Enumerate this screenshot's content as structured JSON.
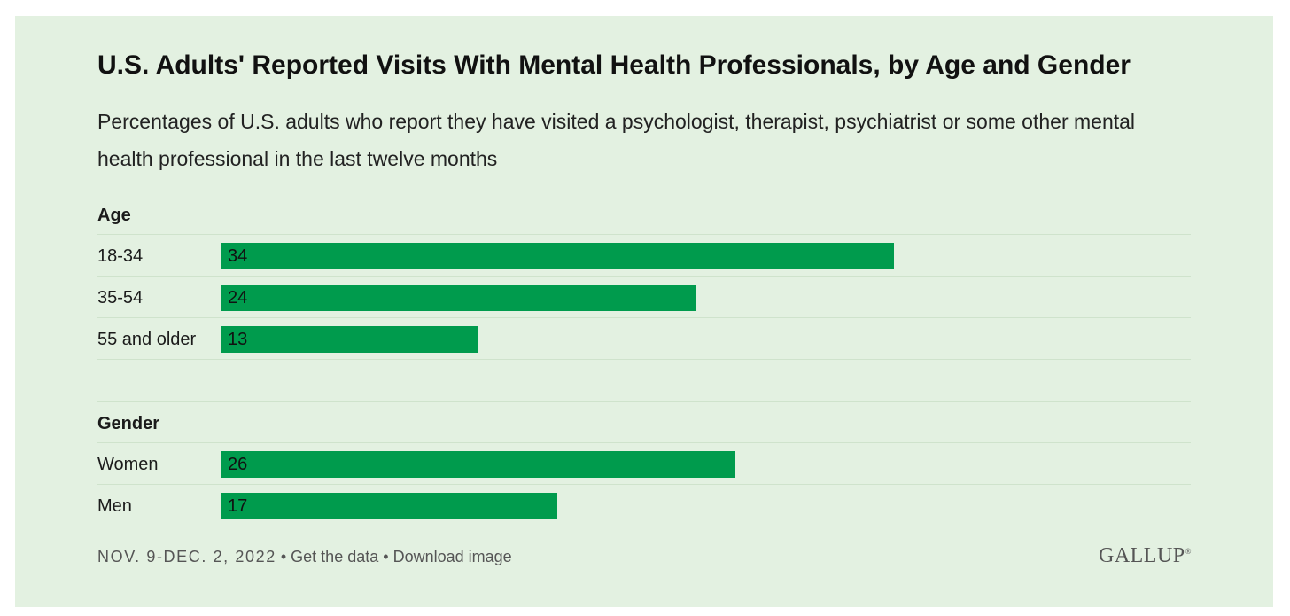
{
  "title": "U.S. Adults' Reported Visits With Mental Health Professionals, by Age and Gender",
  "subtitle": "Percentages of U.S. adults who report they have visited a psychologist, therapist, psychiatrist or some other mental health professional in the last twelve months",
  "colors": {
    "background": "#e3f1e1",
    "bar": "#009b4d"
  },
  "chart_data": {
    "type": "bar",
    "orientation": "horizontal",
    "xlim": [
      0,
      49
    ],
    "grid": false,
    "groups": [
      {
        "name": "Age",
        "categories": [
          "18-34",
          "35-54",
          "55 and older"
        ],
        "values": [
          34,
          24,
          13
        ]
      },
      {
        "name": "Gender",
        "categories": [
          "Women",
          "Men"
        ],
        "values": [
          26,
          17
        ]
      }
    ]
  },
  "footer": {
    "date": "NOV. 9-DEC. 2, 2022",
    "separator": "•",
    "get_data_label": "Get the data",
    "download_label": "Download image"
  },
  "logo": {
    "text": "GALLUP",
    "mark": "®"
  }
}
